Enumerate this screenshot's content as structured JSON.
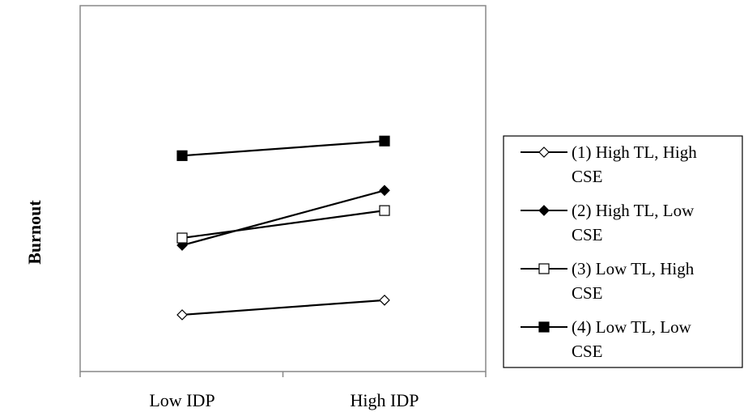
{
  "chart_data": {
    "type": "line",
    "categories": [
      "Low IDP",
      "High IDP"
    ],
    "ylabel": "Burnout",
    "xlabel": "",
    "title": "",
    "grid": false,
    "legend_position": "right",
    "ylim": [
      0,
      1
    ],
    "series": [
      {
        "name": "(1) High TL, High CSE",
        "values": [
          0.155,
          0.195
        ],
        "marker": "diamond",
        "filled": false,
        "color": "#000000"
      },
      {
        "name": "(2) High TL, Low CSE",
        "values": [
          0.345,
          0.495
        ],
        "marker": "diamond",
        "filled": true,
        "color": "#000000"
      },
      {
        "name": "(3) Low TL, High CSE",
        "values": [
          0.365,
          0.44
        ],
        "marker": "square",
        "filled": false,
        "color": "#000000"
      },
      {
        "name": "(4) Low TL, Low CSE",
        "values": [
          0.59,
          0.63
        ],
        "marker": "square",
        "filled": true,
        "color": "#000000"
      }
    ]
  }
}
